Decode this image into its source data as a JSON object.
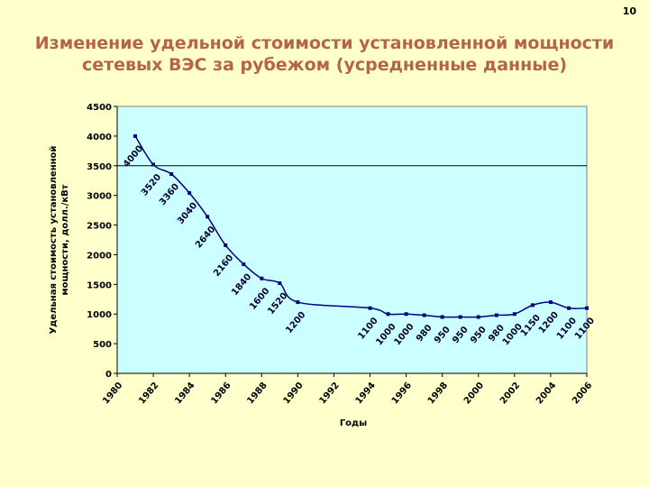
{
  "page_number": "10",
  "title_lines": [
    "Изменение удельной стоимости установленной мощности",
    "сетевых ВЭС за рубежом (усредненные данные)"
  ],
  "chart_data": {
    "type": "line",
    "title": "Изменение удельной стоимости установленной мощности сетевых ВЭС за рубежом (усредненные данные)",
    "xlabel": "Годы",
    "ylabel_lines": [
      "Удельная стоимость установленной",
      "мощности, долл./кВт"
    ],
    "xlim": [
      1980,
      2006
    ],
    "ylim": [
      0,
      4500
    ],
    "x_ticks": [
      1980,
      1982,
      1984,
      1986,
      1988,
      1990,
      1992,
      1994,
      1996,
      1998,
      2000,
      2002,
      2004,
      2006
    ],
    "y_ticks": [
      0,
      500,
      1000,
      1500,
      2000,
      2500,
      3000,
      3500,
      4000,
      4500
    ],
    "grid": "horizontal line at 3500",
    "line_color": "#000080",
    "plot_bg": "#ccffff",
    "series": [
      {
        "x": [
          1981,
          1982,
          1983,
          1984,
          1985,
          1986,
          1987,
          1988,
          1989,
          1990,
          1994,
          1995,
          1996,
          1997,
          1998,
          1999,
          2000,
          2001,
          2002,
          2003,
          2004,
          2005,
          2006
        ],
        "y": [
          4000,
          3520,
          3360,
          3040,
          2640,
          2160,
          1840,
          1600,
          1520,
          1200,
          1100,
          1000,
          1000,
          980,
          950,
          950,
          950,
          980,
          1000,
          1150,
          1200,
          1100,
          1100
        ]
      }
    ],
    "annotations": [
      {
        "text": "4000",
        "x": 1981,
        "y": 4000
      },
      {
        "text": "3520",
        "x": 1982,
        "y": 3520
      },
      {
        "text": "3360",
        "x": 1983,
        "y": 3360
      },
      {
        "text": "3040",
        "x": 1984,
        "y": 3040
      },
      {
        "text": "2640",
        "x": 1985,
        "y": 2640
      },
      {
        "text": "2160",
        "x": 1986,
        "y": 2160
      },
      {
        "text": "1840",
        "x": 1987,
        "y": 1840
      },
      {
        "text": "1600",
        "x": 1988,
        "y": 1600
      },
      {
        "text": "1520",
        "x": 1989,
        "y": 1520
      },
      {
        "text": "1200",
        "x": 1990,
        "y": 1200
      },
      {
        "text": "1100",
        "x": 1994,
        "y": 1100
      },
      {
        "text": "1000",
        "x": 1995,
        "y": 1000
      },
      {
        "text": "1000",
        "x": 1996,
        "y": 1000
      },
      {
        "text": "980",
        "x": 1997,
        "y": 980
      },
      {
        "text": "950",
        "x": 1998,
        "y": 950
      },
      {
        "text": "950",
        "x": 1999,
        "y": 950
      },
      {
        "text": "950",
        "x": 2000,
        "y": 950
      },
      {
        "text": "980",
        "x": 2001,
        "y": 980
      },
      {
        "text": "1000",
        "x": 2002,
        "y": 1000
      },
      {
        "text": "1150",
        "x": 2003,
        "y": 1150
      },
      {
        "text": "1200",
        "x": 2004,
        "y": 1200
      },
      {
        "text": "1100",
        "x": 2005,
        "y": 1100
      },
      {
        "text": "1100",
        "x": 2006,
        "y": 1100
      }
    ]
  }
}
